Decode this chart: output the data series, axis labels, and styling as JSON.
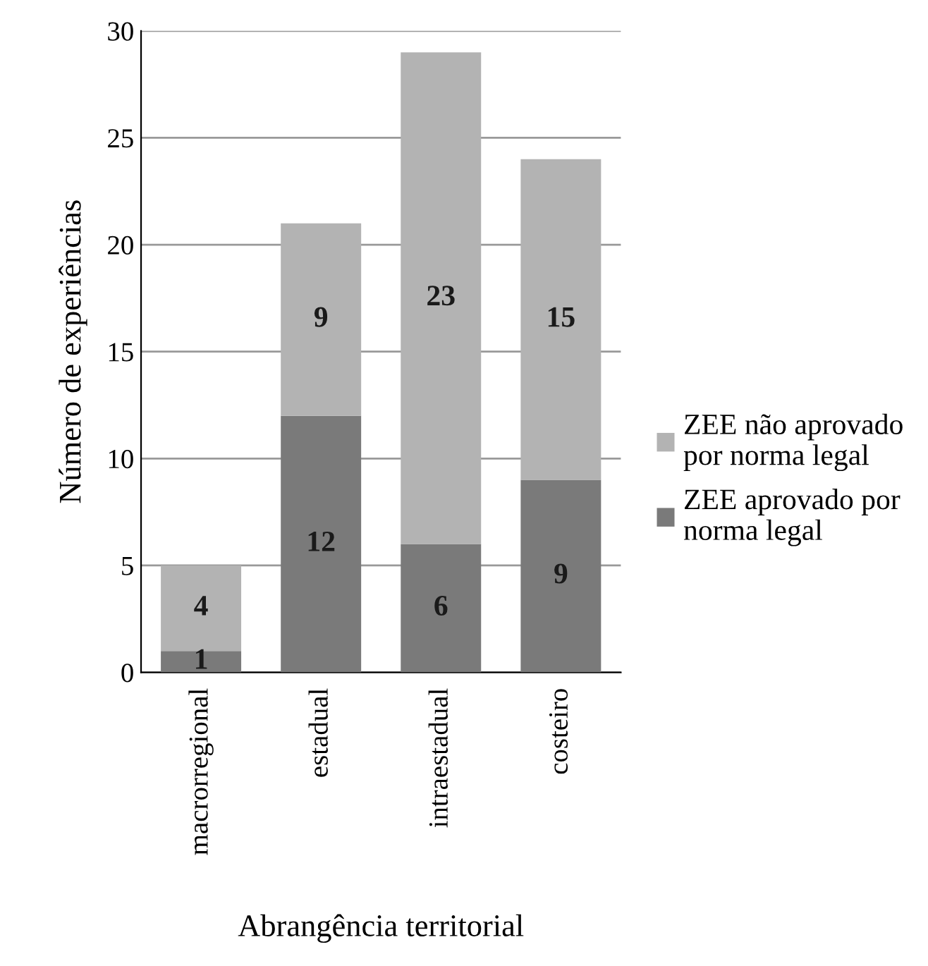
{
  "chart_data": {
    "type": "bar",
    "stacked": true,
    "xlabel": "Abrangência territorial",
    "ylabel": "Número de experiências",
    "categories": [
      "macrorregional",
      "estadual",
      "intraestadual",
      "costeiro"
    ],
    "series": [
      {
        "name": "ZEE aprovado por\nnorma legal",
        "color": "#7a7a7a",
        "values": [
          1,
          12,
          6,
          9
        ]
      },
      {
        "name": "ZEE não aprovado\npor norma legal",
        "color": "#b3b3b3",
        "values": [
          4,
          9,
          23,
          15
        ]
      }
    ],
    "ylim": [
      0,
      30
    ],
    "yticks": [
      0,
      5,
      10,
      15,
      20,
      25,
      30
    ],
    "grid": "y",
    "legend": "right",
    "data_labels": true
  }
}
